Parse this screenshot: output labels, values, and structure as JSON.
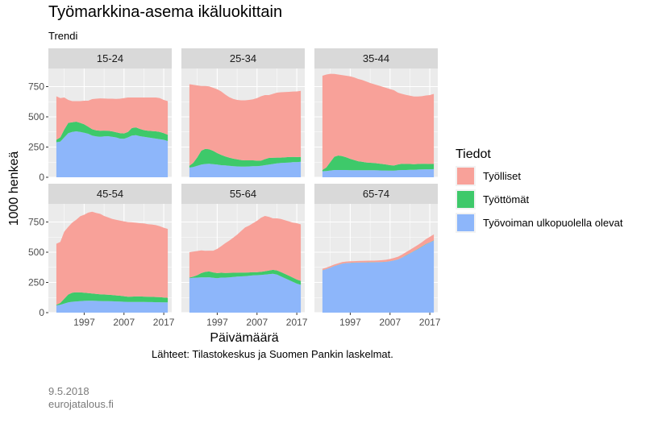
{
  "header": {
    "title": "Työmarkkina-asema ikäluokittain",
    "subtitle": "Trendi"
  },
  "footer": {
    "source": "Lähteet: Tilastokeskus ja Suomen Pankin laskelmat.",
    "date": "9.5.2018",
    "site": "eurojatalous.fi"
  },
  "colors": {
    "tyolliset": "#F8A199",
    "tyottomat": "#3EC96A",
    "ulkopuolella": "#8DB6FA",
    "panel_bg": "#EBEBEB",
    "strip_bg": "#D9D9D9",
    "grid": "#FFFFFF"
  },
  "chart_data": {
    "type": "area",
    "stacked": true,
    "title": "Työmarkkina-asema ikäluokittain",
    "subtitle": "Trendi",
    "xlabel": "Päivämäärä",
    "ylabel": "1000 henkeä",
    "ylim": [
      0,
      900
    ],
    "yticks": [
      0,
      250,
      500,
      750
    ],
    "xlim": [
      1988,
      2019
    ],
    "xticks": [
      1997,
      2007,
      2017
    ],
    "grid": true,
    "legend": {
      "title": "Tiedot",
      "position": "right",
      "entries": [
        {
          "key": "tyolliset",
          "label": "Työlliset"
        },
        {
          "key": "tyottomat",
          "label": "Työttömät"
        },
        {
          "key": "ulkopuolella",
          "label": "Työvoiman ulkopuolella olevat"
        }
      ]
    },
    "x": [
      1990,
      1991,
      1992,
      1993,
      1994,
      1995,
      1996,
      1997,
      1998,
      1999,
      2000,
      2001,
      2002,
      2003,
      2004,
      2005,
      2006,
      2007,
      2008,
      2009,
      2010,
      2011,
      2012,
      2013,
      2014,
      2015,
      2016,
      2017,
      2018
    ],
    "panels": [
      {
        "label": "15-24",
        "ulkopuolella": [
          290,
          295,
          330,
          365,
          375,
          380,
          375,
          368,
          360,
          345,
          338,
          335,
          338,
          340,
          335,
          330,
          320,
          318,
          330,
          345,
          348,
          340,
          335,
          330,
          325,
          320,
          315,
          310,
          300
        ],
        "tyottomat": [
          20,
          35,
          65,
          85,
          80,
          80,
          75,
          70,
          58,
          52,
          50,
          50,
          48,
          45,
          45,
          43,
          45,
          45,
          45,
          62,
          65,
          60,
          55,
          55,
          58,
          60,
          60,
          55,
          52
        ],
        "tyolliset": [
          360,
          325,
          265,
          190,
          175,
          170,
          180,
          195,
          215,
          250,
          262,
          268,
          265,
          265,
          270,
          275,
          285,
          292,
          285,
          253,
          247,
          260,
          270,
          275,
          277,
          280,
          280,
          275,
          278
        ]
      },
      {
        "label": "25-34",
        "ulkopuolella": [
          80,
          85,
          95,
          105,
          110,
          112,
          108,
          105,
          100,
          98,
          95,
          92,
          90,
          88,
          88,
          90,
          92,
          92,
          95,
          100,
          105,
          110,
          115,
          118,
          120,
          122,
          125,
          125,
          128
        ],
        "tyottomat": [
          15,
          35,
          70,
          115,
          125,
          120,
          110,
          95,
          85,
          75,
          68,
          62,
          58,
          55,
          52,
          50,
          48,
          45,
          42,
          50,
          55,
          52,
          48,
          45,
          45,
          45,
          44,
          42,
          40
        ],
        "tyolliset": [
          675,
          645,
          595,
          535,
          520,
          520,
          522,
          528,
          525,
          512,
          500,
          494,
          492,
          494,
          497,
          500,
          505,
          518,
          533,
          530,
          520,
          528,
          537,
          540,
          540,
          540,
          540,
          543,
          547
        ]
      },
      {
        "label": "35-44",
        "ulkopuolella": [
          50,
          52,
          56,
          60,
          60,
          60,
          60,
          58,
          58,
          58,
          58,
          58,
          58,
          58,
          57,
          56,
          56,
          55,
          55,
          58,
          60,
          60,
          62,
          62,
          64,
          65,
          66,
          66,
          67
        ],
        "tyottomat": [
          10,
          30,
          70,
          110,
          120,
          115,
          105,
          95,
          85,
          75,
          70,
          65,
          62,
          60,
          57,
          54,
          50,
          45,
          42,
          48,
          52,
          50,
          48,
          46,
          46,
          46,
          45,
          44,
          43
        ],
        "tyolliset": [
          780,
          768,
          730,
          685,
          670,
          670,
          675,
          682,
          683,
          680,
          677,
          670,
          660,
          652,
          646,
          640,
          634,
          630,
          623,
          594,
          578,
          572,
          565,
          560,
          558,
          560,
          566,
          570,
          580
        ]
      },
      {
        "label": "45-54",
        "ulkopuolella": [
          60,
          65,
          75,
          85,
          90,
          93,
          95,
          97,
          98,
          98,
          97,
          96,
          95,
          95,
          94,
          93,
          92,
          90,
          88,
          88,
          88,
          88,
          88,
          87,
          87,
          86,
          86,
          85,
          85
        ],
        "tyottomat": [
          5,
          15,
          40,
          65,
          75,
          75,
          72,
          68,
          64,
          60,
          58,
          56,
          55,
          53,
          52,
          50,
          48,
          46,
          44,
          45,
          46,
          46,
          45,
          45,
          44,
          43,
          42,
          40,
          38
        ],
        "tyolliset": [
          505,
          505,
          555,
          560,
          580,
          600,
          630,
          645,
          665,
          677,
          670,
          665,
          650,
          640,
          630,
          625,
          622,
          619,
          617,
          614,
          610,
          606,
          605,
          600,
          598,
          595,
          587,
          578,
          570
        ]
      },
      {
        "label": "55-64",
        "ulkopuolella": [
          285,
          288,
          290,
          292,
          292,
          293,
          288,
          285,
          290,
          290,
          292,
          295,
          298,
          300,
          302,
          305,
          308,
          310,
          312,
          315,
          318,
          322,
          315,
          300,
          285,
          270,
          255,
          240,
          230
        ],
        "tyottomat": [
          5,
          10,
          20,
          35,
          45,
          48,
          45,
          42,
          40,
          38,
          37,
          35,
          33,
          32,
          30,
          28,
          27,
          25,
          25,
          28,
          30,
          32,
          34,
          36,
          36,
          36,
          35,
          34,
          33
        ],
        "tyolliset": [
          210,
          207,
          200,
          188,
          175,
          172,
          180,
          200,
          220,
          246,
          266,
          290,
          314,
          343,
          373,
          387,
          405,
          425,
          448,
          457,
          445,
          426,
          431,
          439,
          444,
          449,
          455,
          466,
          467
        ]
      },
      {
        "label": "65-74",
        "ulkopuolella": [
          350,
          360,
          372,
          385,
          395,
          405,
          410,
          412,
          413,
          414,
          415,
          415,
          416,
          416,
          417,
          418,
          420,
          425,
          432,
          440,
          455,
          472,
          490,
          508,
          525,
          545,
          565,
          580,
          595
        ],
        "tyottomat": [
          1,
          1,
          1,
          1,
          1,
          1,
          1,
          1,
          1,
          1,
          1,
          1,
          1,
          1,
          1,
          1,
          1,
          1,
          1,
          1,
          1,
          2,
          2,
          2,
          2,
          2,
          2,
          2,
          2
        ],
        "tyolliset": [
          12,
          12,
          12,
          12,
          12,
          12,
          12,
          12,
          12,
          12,
          12,
          13,
          13,
          13,
          14,
          15,
          16,
          18,
          20,
          22,
          24,
          26,
          28,
          30,
          33,
          36,
          40,
          45,
          50
        ]
      }
    ]
  }
}
